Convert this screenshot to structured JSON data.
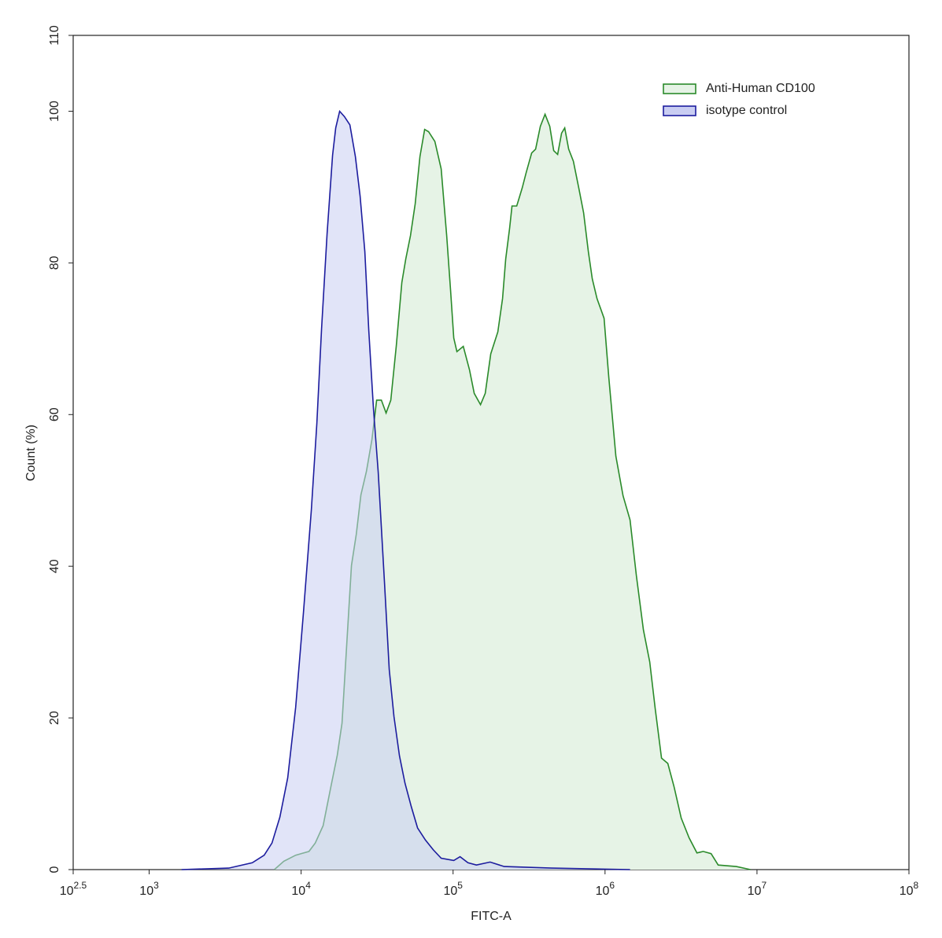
{
  "chart_data": {
    "type": "histogram-overlay",
    "xlabel": "FITC-A",
    "ylabel": "Count (%)",
    "xscale": "log",
    "xlim": [
      316.2278,
      100000000
    ],
    "xticks": [
      {
        "value": 316.2278,
        "label": "10",
        "exponent": "2.5"
      },
      {
        "value": 1000,
        "label": "10",
        "exponent": "3"
      },
      {
        "value": 10000,
        "label": "10",
        "exponent": "4"
      },
      {
        "value": 100000,
        "label": "10",
        "exponent": "5"
      },
      {
        "value": 1000000,
        "label": "10",
        "exponent": "6"
      },
      {
        "value": 10000000,
        "label": "10",
        "exponent": "7"
      },
      {
        "value": 100000000,
        "label": "10",
        "exponent": "8"
      }
    ],
    "ylim": [
      0,
      110
    ],
    "yticks": [
      0,
      20,
      40,
      60,
      80,
      100,
      110
    ],
    "legend": "top-right",
    "series": [
      {
        "name": "Anti-Human CD100",
        "color": "#2a8a2a",
        "fill": "#e6f3e6",
        "x": [
          6666,
          7693,
          9204,
          11268,
          12391,
          13964,
          15733,
          17304,
          18594,
          19970,
          21450,
          23050,
          24750,
          26900,
          29250,
          31420,
          33750,
          36240,
          38940,
          42320,
          46020,
          48850,
          52470,
          56360,
          60530,
          65030,
          69020,
          75930,
          83530,
          90800,
          96360,
          101090,
          106000,
          116700,
          128300,
          137800,
          151600,
          162900,
          177000,
          197100,
          211700,
          222100,
          235700,
          244300,
          262400,
          285300,
          302800,
          329100,
          349400,
          375200,
          403100,
          432900,
          459600,
          487900,
          517900,
          543200,
          576600,
          619400,
          673100,
          723100,
          776900,
          824500,
          885700,
          985800,
          1059000,
          1179000,
          1313000,
          1461000,
          1607000,
          1789000,
          1969000,
          2140000,
          2353000,
          2590000,
          2849000,
          3172000,
          3574000,
          4027000,
          4430000,
          4991000,
          5556000,
          7306000,
          9058000
        ],
        "values": [
          0,
          1.1,
          1.9,
          2.4,
          3.5,
          5.8,
          11.0,
          15.1,
          19.3,
          29.7,
          40.1,
          44.2,
          49.4,
          52.5,
          56.7,
          61.9,
          61.9,
          60.2,
          61.9,
          69.1,
          77.4,
          80.5,
          83.6,
          87.8,
          94.0,
          97.6,
          97.3,
          96.0,
          92.4,
          83.6,
          76.3,
          70.1,
          68.3,
          69.0,
          65.9,
          62.8,
          61.3,
          62.8,
          68.0,
          70.9,
          75.3,
          80.5,
          84.6,
          87.5,
          87.5,
          89.9,
          91.9,
          94.5,
          95.0,
          98.0,
          99.6,
          98.0,
          94.8,
          94.3,
          97.1,
          97.8,
          95.0,
          93.4,
          89.8,
          86.6,
          81.5,
          77.9,
          75.3,
          72.7,
          64.9,
          54.5,
          49.3,
          46.1,
          38.8,
          31.6,
          27.4,
          21.2,
          14.7,
          14.0,
          10.9,
          6.8,
          4.2,
          2.2,
          2.4,
          2.1,
          0.6,
          0.4,
          0
        ]
      },
      {
        "name": "isotype control",
        "color": "#1c1c9e",
        "fill": "#c9cdf2",
        "x": [
          1633,
          3342,
          4775,
          5715,
          6430,
          7244,
          8166,
          9204,
          10363,
          11670,
          12692,
          13634,
          14820,
          16111,
          16896,
          17937,
          19270,
          20946,
          22772,
          24454,
          26270,
          27883,
          29950,
          32170,
          35400,
          38019,
          40840,
          44400,
          48270,
          53090,
          58400,
          65800,
          74130,
          83530,
          101090,
          111200,
          125300,
          142500,
          175300,
          216900,
          443600,
          1461000
        ],
        "values": [
          0,
          0.2,
          0.9,
          1.9,
          3.5,
          6.9,
          12.1,
          21.4,
          33.9,
          47.4,
          58.8,
          71.3,
          83.8,
          94.2,
          97.8,
          100,
          99.3,
          98.2,
          94.0,
          88.8,
          81.5,
          71.1,
          60.7,
          52.4,
          37.8,
          26.4,
          20.2,
          15.0,
          11.4,
          8.3,
          5.5,
          3.9,
          2.6,
          1.5,
          1.2,
          1.7,
          0.9,
          0.6,
          1.0,
          0.4,
          0.2,
          0
        ]
      }
    ]
  }
}
